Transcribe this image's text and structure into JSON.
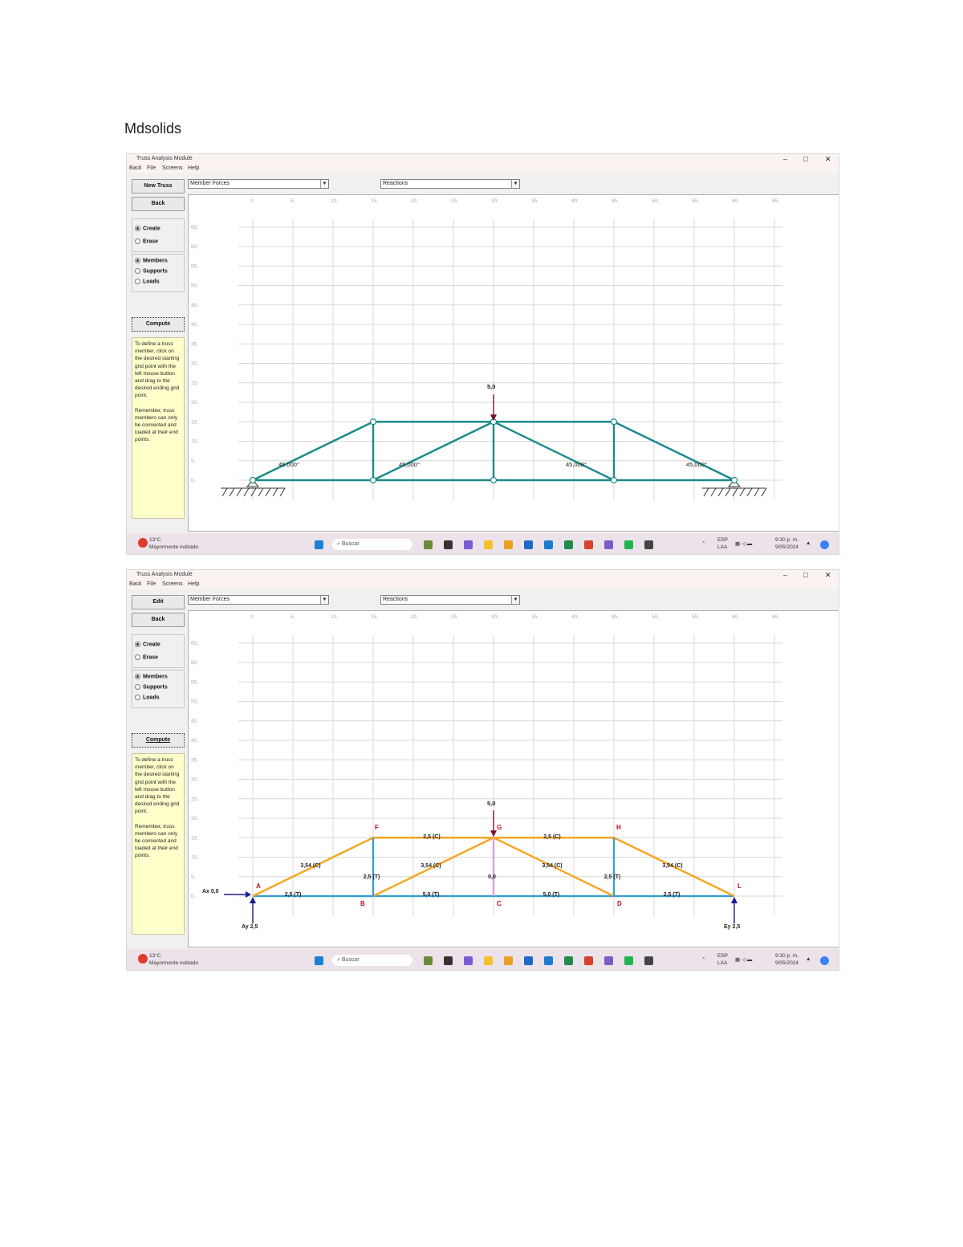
{
  "document": {
    "heading": "Mdsolids"
  },
  "shots": [
    {
      "window_title": "Truss Analysis Module",
      "menu": [
        "Back",
        "File",
        "Screens",
        "Help"
      ],
      "top_button": "New Truss",
      "back_button": "Back",
      "mode_options": [
        "Create",
        "Erase"
      ],
      "mode_selected": "Create",
      "type_options": [
        "Members",
        "Supports",
        "Loads"
      ],
      "type_selected": "Members",
      "compute_button": "Compute",
      "help_text_1": "To define a truss member, click on the desired starting grid point with the left mouse button and drag to the desired ending grid point.",
      "help_text_2": "Remember, truss members can only be connected and loaded at their end points.",
      "dropdown_left": "Member Forces",
      "dropdown_right": "Reactions",
      "x_ticks": [
        "0,",
        "5,",
        "10,",
        "15,",
        "20,",
        "25,",
        "30,",
        "35,",
        "40,",
        "45,",
        "50,",
        "55,",
        "60,",
        "65,"
      ],
      "y_ticks": [
        "65,",
        "60,",
        "55,",
        "50,",
        "45,",
        "40,",
        "35,",
        "30,",
        "25,",
        "20,",
        "15,",
        "10,",
        "5,",
        "0,"
      ],
      "load_label": "5,0",
      "angle_labels": [
        "45,000°",
        "45,000°",
        "45,000°",
        "45,000°"
      ],
      "member_color": "#1b8a8a"
    },
    {
      "window_title": "Truss Analysis Module",
      "menu": [
        "Back",
        "File",
        "Screens",
        "Help"
      ],
      "top_button": "Edit",
      "back_button": "Back",
      "mode_options": [
        "Create",
        "Erase"
      ],
      "mode_selected": "Create",
      "type_options": [
        "Members",
        "Supports",
        "Loads"
      ],
      "type_selected": "Members",
      "compute_button": "Compute",
      "help_text_1": "To define a truss member, click on the desired starting grid point with the left mouse button and drag to the desired ending grid point.",
      "help_text_2": "Remember, truss members can only be connected and loaded at their end points.",
      "dropdown_left": "Member Forces",
      "dropdown_right": "Reactions",
      "x_ticks": [
        "0,",
        "5,",
        "10,",
        "15,",
        "20,",
        "25,",
        "30,",
        "35,",
        "40,",
        "45,",
        "50,",
        "55,",
        "60,",
        "65,"
      ],
      "y_ticks": [
        "65,",
        "60,",
        "55,",
        "50,",
        "45,",
        "40,",
        "35,",
        "30,",
        "25,",
        "20,",
        "15,",
        "10,",
        "5,",
        "0,"
      ],
      "load_label": "5,0",
      "joint_labels": {
        "A": "A",
        "B": "B",
        "C": "C",
        "D": "D",
        "F": "F",
        "G": "G",
        "H": "H",
        "L": "L"
      },
      "member_labels": {
        "AB": "2,5 (T)",
        "BC": "5,0 (T)",
        "CD": "5,0 (T)",
        "DL": "2,5 (T)",
        "FG": "2,5 (C)",
        "GH": "2,5 (C)",
        "AF": "3,54 (C)",
        "BG": "3,54 (C)",
        "GD": "3,54 (C)",
        "HL": "3,54 (C)",
        "BF": "2,5 (T)",
        "CG": "0,0",
        "DH": "2,5 (T)"
      },
      "reaction_labels": {
        "Ax": "Ax 0,0",
        "Ay": "Ay 2,5",
        "Ey": "Ey 2,5"
      },
      "tension_color": "#3a9fd0",
      "compression_color": "#f5a623",
      "zero_color": "#d9a0d9"
    }
  ],
  "taskbar": {
    "weather_temp": "13°C",
    "weather_desc": "Mayormente nublado",
    "search_placeholder": "Buscar",
    "tray_temp": "ESP",
    "tray_lang": "LAA",
    "clock_time": "9:30 p. m.",
    "clock_date": "9/05/2024"
  }
}
